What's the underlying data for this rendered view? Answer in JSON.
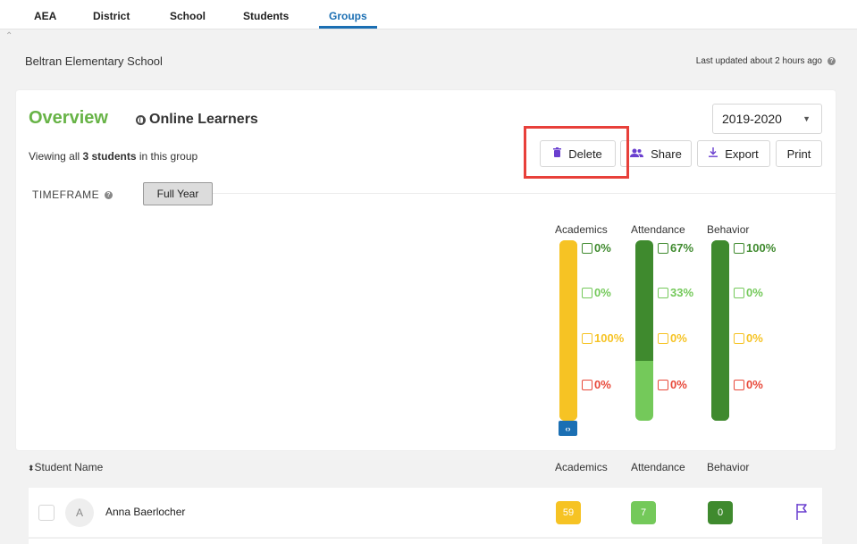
{
  "nav": {
    "tabs": [
      {
        "label": "AEA"
      },
      {
        "label": "District"
      },
      {
        "label": "School"
      },
      {
        "label": "Students"
      },
      {
        "label": "Groups",
        "active": true
      }
    ]
  },
  "header": {
    "school_name": "Beltran Elementary School",
    "last_updated": "Last updated about 2 hours ago"
  },
  "overview": {
    "title": "Overview",
    "group_name": "Online Learners",
    "viewing_prefix": "Viewing all ",
    "viewing_count": "3 students",
    "viewing_suffix": " in this group",
    "year": "2019-2020",
    "actions": {
      "delete": "Delete",
      "share": "Share",
      "export": "Export",
      "print": "Print"
    },
    "timeframe_label": "TIMEFRAME",
    "timeframe_value": "Full Year"
  },
  "summary": {
    "columns": [
      "Academics",
      "Attendance",
      "Behavior"
    ],
    "academics": [
      "0%",
      "0%",
      "100%",
      "0%"
    ],
    "attendance": [
      "67%",
      "33%",
      "0%",
      "0%"
    ],
    "behavior": [
      "100%",
      "0%",
      "0%",
      "0%"
    ],
    "colors": {
      "dark_green": "#3f8a2e",
      "light_green": "#74c95a",
      "yellow": "#f6c324",
      "red": "#e8493a",
      "brand_green": "#67b346",
      "accent_blue": "#1b6fb3",
      "accent_purple": "#6a3fcf"
    }
  },
  "table": {
    "headers": {
      "student_name": "Student Name",
      "academics": "Academics",
      "attendance": "Attendance",
      "behavior": "Behavior"
    },
    "rows": [
      {
        "initial": "A",
        "name": "Anna Baerlocher",
        "academics": "59",
        "attendance": "7",
        "behavior": "0"
      }
    ]
  }
}
